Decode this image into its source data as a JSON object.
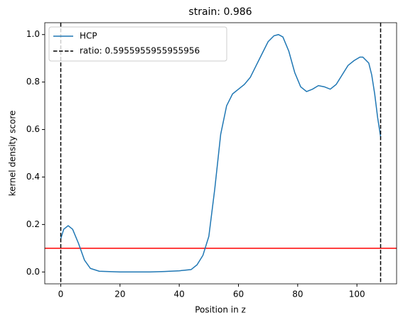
{
  "chart_data": {
    "type": "line",
    "title": "strain: 0.986",
    "x_label": "Position in z",
    "y_label": "kernel density score",
    "xlim": [
      -5.4,
      113.4
    ],
    "ylim": [
      -0.05,
      1.05
    ],
    "xticks": [
      0,
      20,
      40,
      60,
      80,
      100
    ],
    "yticks": [
      {
        "value": 0,
        "label": "0.0"
      },
      0.2,
      0.4,
      0.6,
      0.8,
      {
        "value": 1,
        "label": "1.0"
      }
    ],
    "legend": "upper left",
    "series": [
      {
        "name": "HCP",
        "color": "#1f77b4",
        "x": [
          0,
          1,
          2.5,
          4,
          6,
          8,
          10,
          13,
          20,
          30,
          35,
          40,
          44,
          46,
          48,
          50,
          52,
          54,
          56,
          58,
          60,
          62,
          64,
          66,
          68,
          70,
          72,
          73.5,
          75,
          77,
          79,
          81,
          83,
          85,
          87,
          89,
          91,
          93,
          95,
          97,
          99,
          101,
          102,
          104,
          105,
          106,
          107,
          108
        ],
        "values": [
          0.14,
          0.18,
          0.195,
          0.18,
          0.12,
          0.05,
          0.015,
          0.003,
          0,
          0,
          0.002,
          0.005,
          0.01,
          0.03,
          0.07,
          0.15,
          0.35,
          0.58,
          0.7,
          0.75,
          0.77,
          0.79,
          0.82,
          0.87,
          0.92,
          0.97,
          0.995,
          1.0,
          0.99,
          0.93,
          0.84,
          0.78,
          0.76,
          0.77,
          0.785,
          0.78,
          0.77,
          0.79,
          0.83,
          0.87,
          0.89,
          0.905,
          0.905,
          0.88,
          0.83,
          0.75,
          0.65,
          0.57
        ]
      },
      {
        "name": "ratio: 0.5955955955955956",
        "color": "#000000",
        "dashed": true,
        "vlines": [
          0,
          108
        ]
      }
    ],
    "hline": {
      "value": 0.1,
      "color": "#ff0000"
    }
  }
}
